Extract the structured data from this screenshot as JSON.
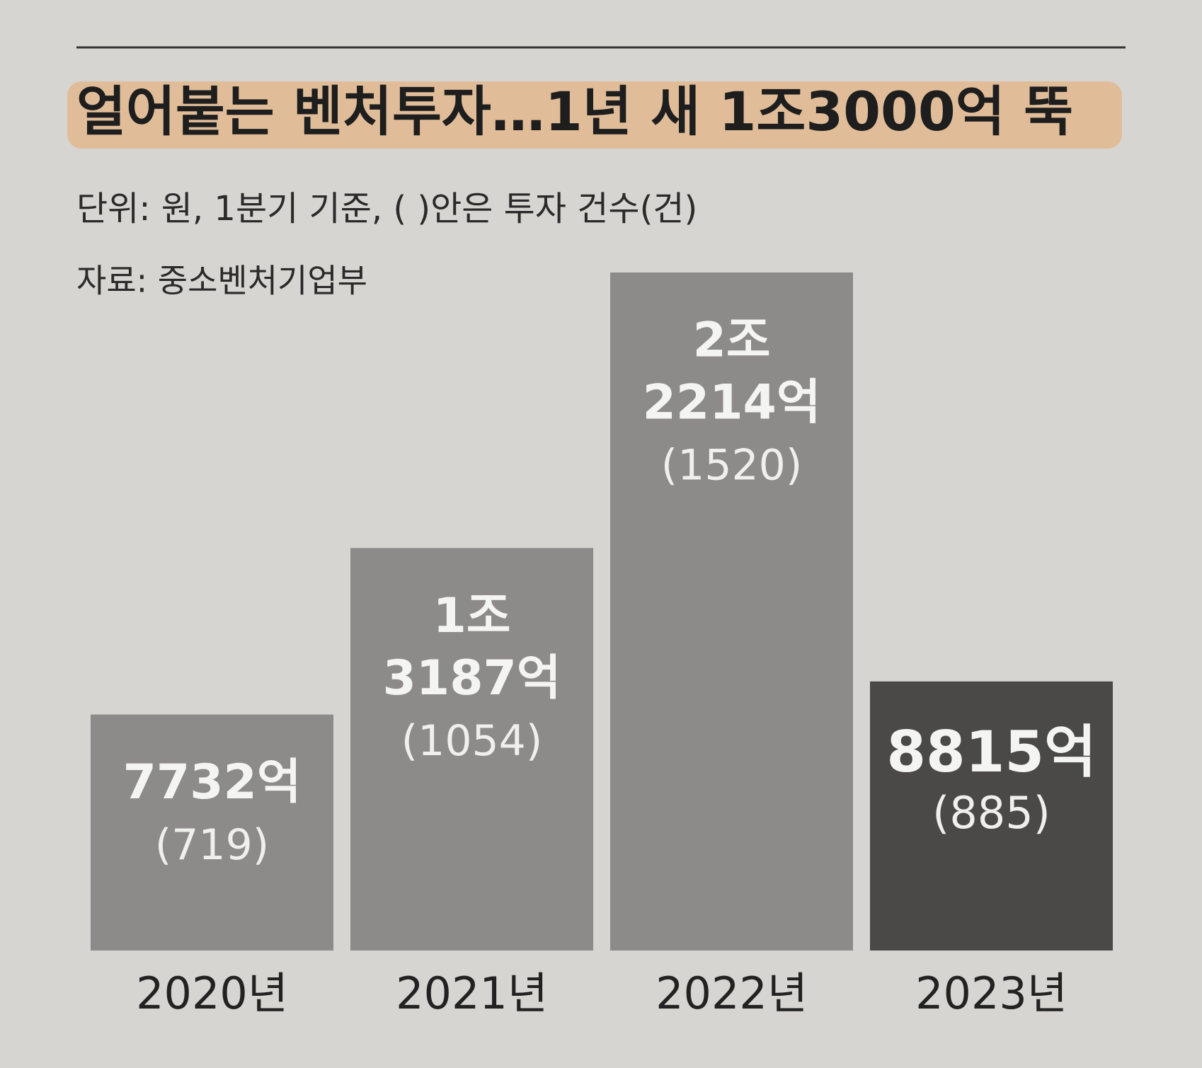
{
  "chart_data": {
    "type": "bar",
    "title": "얼어붙는 벤처투자…1년 새 1조3000억 뚝",
    "subtitle": "단위: 원, 1분기 기준, ( )안은 투자 건수(건)",
    "source": "자료: 중소벤처기업부",
    "categories": [
      "2020년",
      "2021년",
      "2022년",
      "2023년"
    ],
    "values": [
      7732,
      13187,
      22214,
      8815
    ],
    "value_labels": [
      [
        "7732억"
      ],
      [
        "1조",
        "3187억"
      ],
      [
        "2조",
        "2214억"
      ],
      [
        "8815억"
      ]
    ],
    "counts": [
      719,
      1054,
      1520,
      885
    ],
    "count_labels": [
      "(719)",
      "(1054)",
      "(1520)",
      "(885)"
    ],
    "colors": [
      "#8d8b89",
      "#8d8b89",
      "#8d8b89",
      "#4a4948"
    ]
  }
}
